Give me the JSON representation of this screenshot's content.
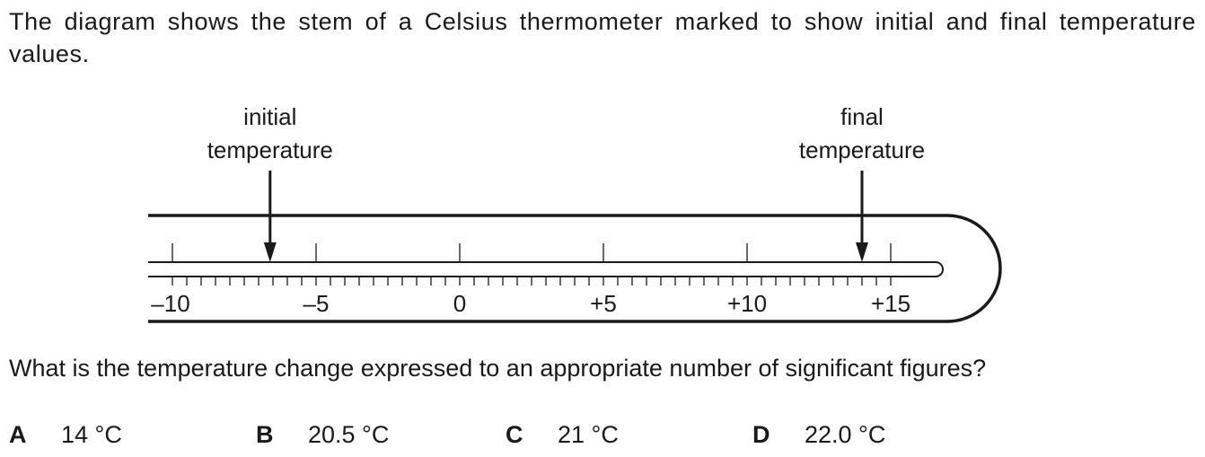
{
  "intro_text": "The diagram shows the stem of a Celsius thermometer marked to show initial and final temperature values.",
  "thermometer": {
    "initial_label": [
      "initial",
      "temperature"
    ],
    "final_label": [
      "final",
      "temperature"
    ],
    "scale_min": -10,
    "scale_max": 15,
    "minor_step": 0.5,
    "major_labels": [
      "–10",
      "–5",
      "0",
      "+5",
      "+10",
      "+15"
    ],
    "initial_value": -6.6,
    "final_value": 14.0
  },
  "question": "What is the temperature change expressed to an appropriate number of significant figures?",
  "options": [
    {
      "letter": "A",
      "value": "14 °C"
    },
    {
      "letter": "B",
      "value": "20.5 °C"
    },
    {
      "letter": "C",
      "value": "21 °C"
    },
    {
      "letter": "D",
      "value": "22.0 °C"
    }
  ]
}
